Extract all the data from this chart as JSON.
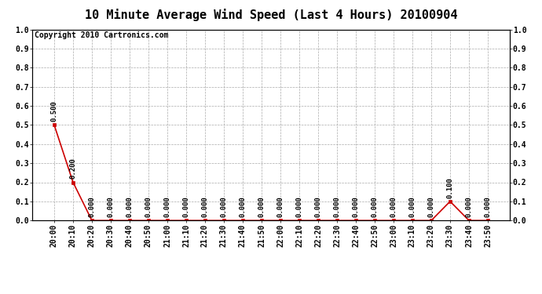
{
  "title": "10 Minute Average Wind Speed (Last 4 Hours) 20100904",
  "copyright": "Copyright 2010 Cartronics.com",
  "x_labels": [
    "20:00",
    "20:10",
    "20:20",
    "20:30",
    "20:40",
    "20:50",
    "21:00",
    "21:10",
    "21:20",
    "21:30",
    "21:40",
    "21:50",
    "22:00",
    "22:10",
    "22:20",
    "22:30",
    "22:40",
    "22:50",
    "23:00",
    "23:10",
    "23:20",
    "23:30",
    "23:40",
    "23:50"
  ],
  "y_values": [
    0.5,
    0.2,
    0.0,
    0.0,
    0.0,
    0.0,
    0.0,
    0.0,
    0.0,
    0.0,
    0.0,
    0.0,
    0.0,
    0.0,
    0.0,
    0.0,
    0.0,
    0.0,
    0.0,
    0.0,
    0.0,
    0.1,
    0.0,
    0.0
  ],
  "line_color": "#cc0000",
  "marker_color": "#cc0000",
  "bg_color": "#ffffff",
  "plot_bg_color": "#ffffff",
  "grid_color": "#aaaaaa",
  "ylim": [
    0.0,
    1.0
  ],
  "yticks": [
    0.0,
    0.1,
    0.2,
    0.3,
    0.4,
    0.5,
    0.6,
    0.7,
    0.8,
    0.9,
    1.0
  ],
  "title_fontsize": 11,
  "copyright_fontsize": 7,
  "tick_fontsize": 7,
  "annotation_fontsize": 6.5
}
